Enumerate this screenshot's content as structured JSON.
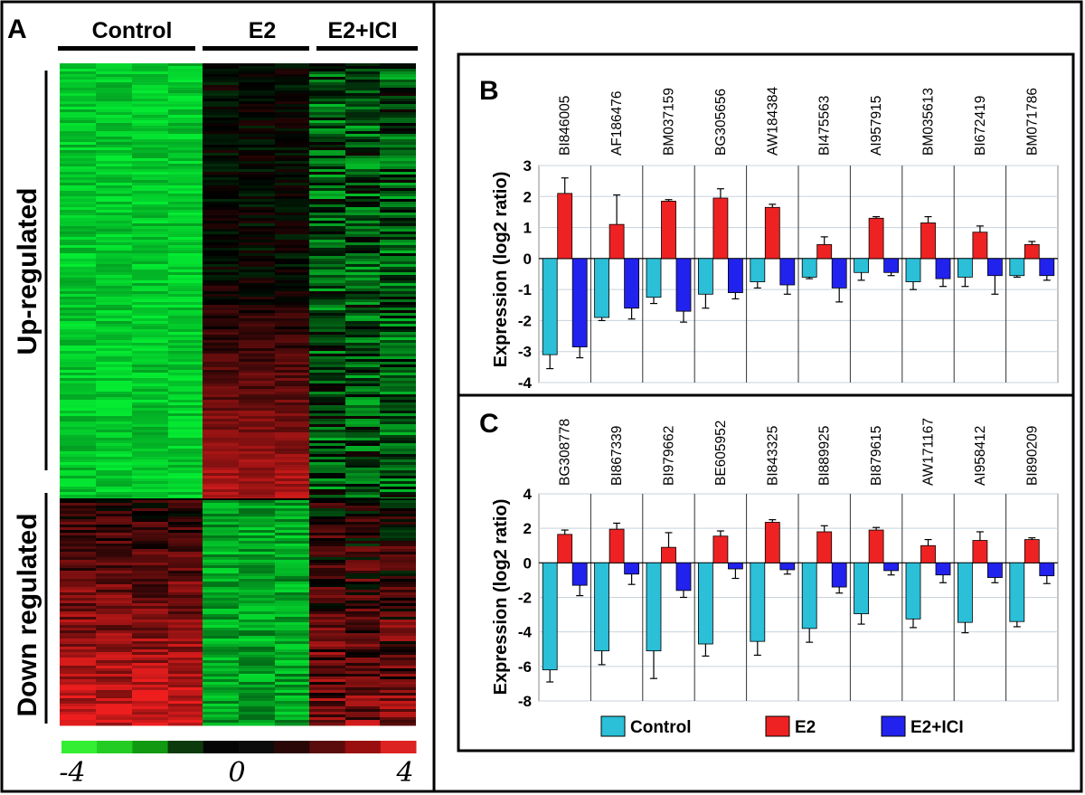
{
  "chart_data": [
    {
      "panel": "A",
      "type": "heatmap",
      "columns": [
        "Control",
        "E2",
        "E2+ICI"
      ],
      "row_groups": [
        "Up-regulated",
        "Down regulated"
      ],
      "color_scale": {
        "min": "-4",
        "mid": "0",
        "max": "4",
        "colors": [
          "#33ee33",
          "#000000",
          "#ee2222"
        ]
      }
    },
    {
      "panel": "B",
      "type": "bar",
      "ylabel": "Expression (log2 ratio)",
      "ylim": [
        -4,
        3
      ],
      "yticks": [
        "3",
        "2",
        "1",
        "0",
        "-1",
        "-2",
        "-3",
        "-4"
      ],
      "categories": [
        "BI846005",
        "AF186476",
        "BM037159",
        "BG305656",
        "AW184384",
        "BI475563",
        "AI957915",
        "BM035613",
        "BI672419",
        "BM071786"
      ],
      "series": [
        {
          "name": "Control",
          "color": "#2bbfd8",
          "values": [
            -3.1,
            -1.9,
            -1.25,
            -1.15,
            -0.75,
            -0.6,
            -0.45,
            -0.75,
            -0.6,
            -0.55
          ],
          "errors": [
            0.45,
            0.1,
            0.2,
            0.45,
            0.2,
            0.05,
            0.25,
            0.25,
            0.3,
            0.05
          ]
        },
        {
          "name": "E2",
          "color": "#ee2222",
          "values": [
            2.1,
            1.1,
            1.85,
            1.95,
            1.65,
            0.45,
            1.3,
            1.15,
            0.85,
            0.45
          ],
          "errors": [
            0.5,
            0.95,
            0.05,
            0.3,
            0.1,
            0.25,
            0.05,
            0.2,
            0.2,
            0.1
          ]
        },
        {
          "name": "E2+ICI",
          "color": "#2222ee",
          "values": [
            -2.85,
            -1.6,
            -1.7,
            -1.1,
            -0.85,
            -0.95,
            -0.45,
            -0.65,
            -0.55,
            -0.55
          ],
          "errors": [
            0.35,
            0.35,
            0.35,
            0.2,
            0.3,
            0.45,
            0.1,
            0.25,
            0.6,
            0.15
          ]
        }
      ]
    },
    {
      "panel": "C",
      "type": "bar",
      "ylabel": "Expression (log2 ratio)",
      "ylim": [
        -8,
        4
      ],
      "yticks": [
        "4",
        "2",
        "0",
        "-2",
        "-4",
        "-6",
        "-8"
      ],
      "categories": [
        "BG308778",
        "BI867339",
        "BI979662",
        "BE605952",
        "BI843325",
        "BI889925",
        "BI879615",
        "AW171167",
        "AI958412",
        "BI890209"
      ],
      "series": [
        {
          "name": "Control",
          "color": "#2bbfd8",
          "values": [
            -6.2,
            -5.1,
            -5.1,
            -4.7,
            -4.55,
            -3.8,
            -2.95,
            -3.25,
            -3.45,
            -3.4
          ],
          "errors": [
            0.7,
            0.8,
            1.6,
            0.7,
            0.8,
            0.8,
            0.6,
            0.5,
            0.6,
            0.3
          ]
        },
        {
          "name": "E2",
          "color": "#ee2222",
          "values": [
            1.65,
            1.95,
            0.9,
            1.55,
            2.35,
            1.8,
            1.9,
            1.0,
            1.3,
            1.35
          ],
          "errors": [
            0.25,
            0.35,
            0.85,
            0.3,
            0.15,
            0.35,
            0.15,
            0.35,
            0.5,
            0.1
          ]
        },
        {
          "name": "E2+ICI",
          "color": "#2222ee",
          "values": [
            -1.3,
            -0.65,
            -1.6,
            -0.35,
            -0.4,
            -1.4,
            -0.45,
            -0.7,
            -0.85,
            -0.75
          ],
          "errors": [
            0.6,
            0.6,
            0.4,
            0.55,
            0.25,
            0.35,
            0.25,
            0.45,
            0.3,
            0.45
          ]
        }
      ]
    }
  ],
  "labels": {
    "A": "A",
    "B": "B",
    "C": "C"
  },
  "legend": [
    "Control",
    "E2",
    "E2+ICI"
  ]
}
